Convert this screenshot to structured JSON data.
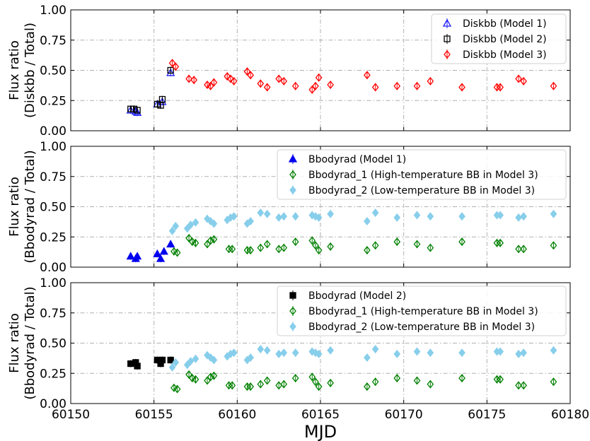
{
  "chart_data": [
    {
      "type": "scatter",
      "ylabel": [
        "Flux ratio",
        "(Diskbb / Total)"
      ],
      "ylim": [
        0,
        1
      ],
      "xlim": [
        60150,
        60180
      ],
      "yticks": [
        "0.00",
        "0.25",
        "0.50",
        "0.75",
        "1.00"
      ],
      "grid": true,
      "legend_position": "top-right",
      "series": [
        {
          "name": "Diskbb (Model 1)",
          "marker": "triangle-open",
          "color": "#1f1fff",
          "x": [
            60153.6,
            60153.9,
            60154.0,
            60155.2,
            60155.5,
            60156.0
          ],
          "y": [
            0.17,
            0.16,
            0.15,
            0.22,
            0.24,
            0.48
          ]
        },
        {
          "name": "Diskbb (Model 2)",
          "marker": "square-open",
          "color": "#000000",
          "x": [
            60153.6,
            60153.8,
            60154.0,
            60155.2,
            60155.4,
            60155.5,
            60156.0
          ],
          "y": [
            0.18,
            0.18,
            0.17,
            0.22,
            0.21,
            0.26,
            0.5
          ]
        },
        {
          "name": "Diskbb (Model 3)",
          "marker": "diamond-open",
          "color": "#ff0000",
          "x": [
            60156.1,
            60156.3,
            60157.1,
            60157.4,
            60158.2,
            60158.4,
            60158.6,
            60159.4,
            60159.6,
            60159.8,
            60160.6,
            60160.8,
            60161.4,
            60161.8,
            60162.5,
            60162.8,
            60163.5,
            60164.5,
            60164.7,
            60164.9,
            60165.6,
            60167.8,
            60168.3,
            60169.6,
            60170.8,
            60171.6,
            60173.5,
            60175.6,
            60175.8,
            60176.9,
            60177.2,
            60179.0
          ],
          "y": [
            0.56,
            0.53,
            0.43,
            0.42,
            0.38,
            0.37,
            0.4,
            0.45,
            0.43,
            0.41,
            0.49,
            0.46,
            0.39,
            0.36,
            0.43,
            0.41,
            0.37,
            0.34,
            0.37,
            0.44,
            0.38,
            0.46,
            0.36,
            0.37,
            0.37,
            0.41,
            0.36,
            0.36,
            0.36,
            0.43,
            0.41,
            0.37
          ]
        }
      ]
    },
    {
      "type": "scatter",
      "ylabel": [
        "Flux ratio",
        "(Bbodyrad / Total)"
      ],
      "ylim": [
        0,
        1
      ],
      "xlim": [
        60150,
        60180
      ],
      "yticks": [
        "0.00",
        "0.25",
        "0.50",
        "0.75",
        "1.00"
      ],
      "grid": true,
      "legend_position": "top-right",
      "series": [
        {
          "name": "Bbodyrad (Model 1)",
          "marker": "triangle-filled",
          "color": "#0000ee",
          "x": [
            60153.6,
            60153.9,
            60154.0,
            60155.2,
            60155.4,
            60155.6,
            60156.0
          ],
          "y": [
            0.09,
            0.07,
            0.09,
            0.11,
            0.07,
            0.13,
            0.19
          ]
        },
        {
          "name": "Bbodyrad_1 (High-temperature BB in Model 3)",
          "marker": "diamond-open",
          "color": "#008000",
          "x": [
            60156.2,
            60156.4,
            60157.1,
            60157.3,
            60157.5,
            60158.2,
            60158.4,
            60158.6,
            60159.5,
            60159.7,
            60160.6,
            60160.8,
            60161.4,
            60161.8,
            60162.5,
            60162.8,
            60163.5,
            60164.5,
            60164.7,
            60164.9,
            60165.6,
            60167.8,
            60168.3,
            60169.6,
            60170.8,
            60171.6,
            60173.5,
            60175.6,
            60175.8,
            60176.9,
            60177.2,
            60179.0
          ],
          "y": [
            0.13,
            0.12,
            0.24,
            0.21,
            0.2,
            0.19,
            0.22,
            0.23,
            0.15,
            0.15,
            0.14,
            0.14,
            0.16,
            0.19,
            0.15,
            0.16,
            0.21,
            0.22,
            0.18,
            0.14,
            0.17,
            0.14,
            0.18,
            0.21,
            0.19,
            0.16,
            0.21,
            0.2,
            0.2,
            0.15,
            0.15,
            0.18
          ]
        },
        {
          "name": "Bbodyrad_2 (Low-temperature BB in Model 3)",
          "marker": "diamond-filled",
          "color": "#87ceeb",
          "x": [
            60156.1,
            60156.3,
            60157.0,
            60157.2,
            60157.5,
            60158.2,
            60158.4,
            60158.6,
            60159.4,
            60159.6,
            60159.8,
            60160.6,
            60160.8,
            60161.4,
            60161.8,
            60162.5,
            60162.8,
            60163.5,
            60164.5,
            60164.7,
            60164.9,
            60165.6,
            60167.8,
            60168.3,
            60169.6,
            60170.8,
            60171.6,
            60173.5,
            60175.6,
            60175.8,
            60176.9,
            60177.2,
            60179.0
          ],
          "y": [
            0.3,
            0.34,
            0.32,
            0.35,
            0.37,
            0.4,
            0.38,
            0.36,
            0.39,
            0.41,
            0.42,
            0.36,
            0.38,
            0.45,
            0.44,
            0.41,
            0.42,
            0.42,
            0.43,
            0.42,
            0.41,
            0.44,
            0.38,
            0.45,
            0.41,
            0.43,
            0.42,
            0.42,
            0.43,
            0.43,
            0.41,
            0.42,
            0.44
          ]
        }
      ]
    },
    {
      "type": "scatter",
      "ylabel": [
        "Flux ratio",
        "(Bbodyrad / Total)"
      ],
      "ylim": [
        0,
        1
      ],
      "xlim": [
        60150,
        60180
      ],
      "yticks": [
        "0.00",
        "0.25",
        "0.50",
        "0.75",
        "1.00"
      ],
      "xticks": [
        "60150",
        "60155",
        "60160",
        "60165",
        "60170",
        "60175",
        "60180"
      ],
      "xlabel": "MJD",
      "grid": true,
      "legend_position": "top-right",
      "series": [
        {
          "name": "Bbodyrad (Model 2)",
          "marker": "square-filled",
          "color": "#000000",
          "x": [
            60153.6,
            60153.9,
            60154.0,
            60155.2,
            60155.4,
            60155.5,
            60156.0
          ],
          "y": [
            0.33,
            0.34,
            0.31,
            0.36,
            0.33,
            0.36,
            0.36
          ]
        },
        {
          "name": "Bbodyrad_1 (High-temperature BB in Model 3)",
          "marker": "diamond-open",
          "color": "#008000",
          "x": [
            60156.2,
            60156.4,
            60157.1,
            60157.3,
            60157.5,
            60158.2,
            60158.4,
            60158.6,
            60159.5,
            60159.7,
            60160.6,
            60160.8,
            60161.4,
            60161.8,
            60162.5,
            60162.8,
            60163.5,
            60164.5,
            60164.7,
            60164.9,
            60165.6,
            60167.8,
            60168.3,
            60169.6,
            60170.8,
            60171.6,
            60173.5,
            60175.6,
            60175.8,
            60176.9,
            60177.2,
            60179.0
          ],
          "y": [
            0.13,
            0.12,
            0.24,
            0.21,
            0.2,
            0.19,
            0.22,
            0.23,
            0.15,
            0.15,
            0.14,
            0.14,
            0.16,
            0.19,
            0.15,
            0.16,
            0.21,
            0.22,
            0.18,
            0.14,
            0.17,
            0.14,
            0.18,
            0.21,
            0.19,
            0.16,
            0.21,
            0.2,
            0.2,
            0.15,
            0.15,
            0.18
          ]
        },
        {
          "name": "Bbodyrad_2 (Low-temperature BB in Model 3)",
          "marker": "diamond-filled",
          "color": "#87ceeb",
          "x": [
            60156.1,
            60156.3,
            60157.0,
            60157.2,
            60157.5,
            60158.2,
            60158.4,
            60158.6,
            60159.4,
            60159.6,
            60159.8,
            60160.6,
            60160.8,
            60161.4,
            60161.8,
            60162.5,
            60162.8,
            60163.5,
            60164.5,
            60164.7,
            60164.9,
            60165.6,
            60167.8,
            60168.3,
            60169.6,
            60170.8,
            60171.6,
            60173.5,
            60175.6,
            60175.8,
            60176.9,
            60177.2,
            60179.0
          ],
          "y": [
            0.3,
            0.34,
            0.32,
            0.35,
            0.37,
            0.4,
            0.38,
            0.36,
            0.39,
            0.41,
            0.42,
            0.36,
            0.38,
            0.45,
            0.44,
            0.41,
            0.42,
            0.42,
            0.43,
            0.42,
            0.41,
            0.44,
            0.38,
            0.45,
            0.41,
            0.43,
            0.42,
            0.42,
            0.43,
            0.43,
            0.41,
            0.42,
            0.44
          ]
        }
      ]
    }
  ]
}
